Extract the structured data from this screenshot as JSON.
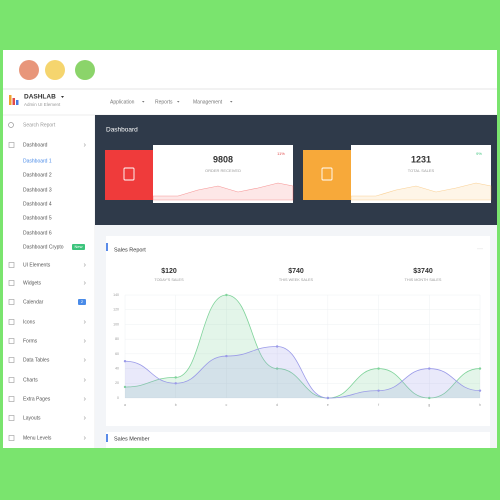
{
  "brand": {
    "name": "DASHLAB",
    "tagline": "Admin UI Element"
  },
  "nav": [
    "Application",
    "Reports",
    "Management"
  ],
  "sidebar": {
    "search": "Search Report",
    "menu": [
      {
        "label": "Dashboard",
        "children": [
          {
            "label": "Dashboard 1"
          },
          {
            "label": "Dashboard 2"
          },
          {
            "label": "Dashboard 3"
          },
          {
            "label": "Dashboard 4"
          },
          {
            "label": "Dashboard 5"
          },
          {
            "label": "Dashboard 6"
          },
          {
            "label": "Dashboard Crypto",
            "badge": "New"
          }
        ]
      },
      {
        "label": "UI Elements"
      },
      {
        "label": "Widgets"
      },
      {
        "label": "Calendar",
        "badge": 2
      },
      {
        "label": "Icons"
      },
      {
        "label": "Forms"
      },
      {
        "label": "Data Tables"
      },
      {
        "label": "Charts"
      },
      {
        "label": "Extra Pages"
      },
      {
        "label": "Layouts"
      },
      {
        "label": "Menu Levels"
      }
    ]
  },
  "page_title": "Dashboard",
  "stat_cards": [
    {
      "value": 9808,
      "label": "ORDER RECEIVED",
      "change": "11%"
    },
    {
      "value": 1231,
      "label": "TOTAL SALES",
      "change": "9%"
    }
  ],
  "sales_report": {
    "title": "Sales Report",
    "stats": [
      {
        "value": "$120",
        "label": "TODAY'S SALES"
      },
      {
        "value": "$740",
        "label": "THIS WEEK SALES"
      },
      {
        "value": "$3740",
        "label": "THIS MONTH SALES"
      }
    ],
    "chart": {
      "type": "area",
      "categories": [
        "a",
        "b",
        "c",
        "d",
        "e",
        "f",
        "g",
        "h"
      ],
      "series": [
        {
          "color": "#7fd39a",
          "values": [
            15,
            28,
            140,
            40,
            0,
            40,
            0,
            40
          ]
        },
        {
          "color": "#9a9ae8",
          "values": [
            50,
            20,
            57,
            70,
            0,
            10,
            40,
            10
          ]
        }
      ],
      "ylim": [
        0,
        140
      ],
      "yticks": [
        0,
        20,
        40,
        60,
        80,
        100,
        120,
        140
      ],
      "grid": true
    }
  },
  "sales_member": {
    "title": "Sales Member"
  }
}
